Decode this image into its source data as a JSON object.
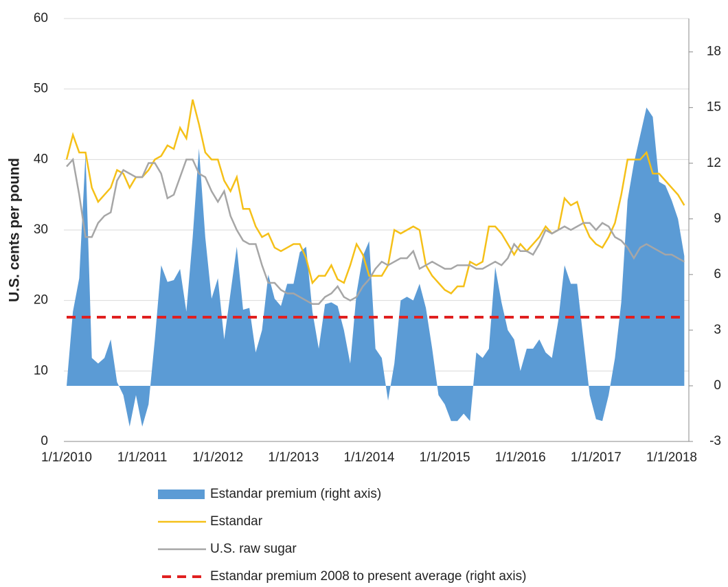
{
  "chart_data": {
    "type": "combo",
    "ylabel": "U.S. cents per pound",
    "categories": [
      "1/1/2010",
      null,
      null,
      null,
      null,
      null,
      null,
      null,
      null,
      null,
      null,
      null,
      "1/1/2011",
      null,
      null,
      null,
      null,
      null,
      null,
      null,
      null,
      null,
      null,
      null,
      "1/1/2012",
      null,
      null,
      null,
      null,
      null,
      null,
      null,
      null,
      null,
      null,
      null,
      "1/1/2013",
      null,
      null,
      null,
      null,
      null,
      null,
      null,
      null,
      null,
      null,
      null,
      "1/1/2014",
      null,
      null,
      null,
      null,
      null,
      null,
      null,
      null,
      null,
      null,
      null,
      "1/1/2015",
      null,
      null,
      null,
      null,
      null,
      null,
      null,
      null,
      null,
      null,
      null,
      "1/1/2016",
      null,
      null,
      null,
      null,
      null,
      null,
      null,
      null,
      null,
      null,
      null,
      "1/1/2017",
      null,
      null,
      null,
      null,
      null,
      null,
      null,
      null,
      null,
      null,
      null,
      "1/1/2018",
      null,
      null
    ],
    "ylim": [
      0,
      60
    ],
    "yticks": [
      0,
      10,
      20,
      30,
      40,
      50,
      60
    ],
    "y2lim": [
      -3,
      19.8
    ],
    "y2ticks": [
      -3,
      0,
      3,
      6,
      9,
      12,
      15,
      18
    ],
    "grid": true,
    "series": [
      {
        "name": "Estandar premium (right axis)",
        "type": "area",
        "axis": "y2",
        "color": "#5b9bd5",
        "values": [
          0,
          4,
          5.8,
          12.5,
          1.5,
          1.2,
          1.5,
          2.5,
          0.2,
          -0.5,
          -2.2,
          -0.5,
          -2.2,
          -1,
          2.5,
          6.5,
          5.6,
          5.7,
          6.3,
          4,
          8,
          12.8,
          8,
          4.7,
          5.8,
          2.5,
          5,
          7.5,
          4.1,
          4.2,
          1.8,
          3,
          6,
          4.7,
          4.3,
          5.5,
          5.5,
          7.2,
          7.5,
          4,
          2,
          4.4,
          4.5,
          4.3,
          3,
          1.2,
          5,
          7,
          7.8,
          2,
          1.5,
          -0.8,
          1.2,
          4.6,
          4.8,
          4.6,
          5.5,
          4.2,
          2,
          -0.5,
          -1,
          -1.9,
          -1.9,
          -1.5,
          -1.9,
          1.8,
          1.5,
          2,
          6.4,
          4.5,
          3,
          2.5,
          0.8,
          2,
          2,
          2.5,
          1.8,
          1.5,
          3.5,
          6.5,
          5.5,
          5.5,
          2.5,
          -0.5,
          -1.8,
          -1.9,
          -0.5,
          1.5,
          4.5,
          10,
          12,
          13.5,
          15,
          14.5,
          11,
          10.8,
          10,
          9,
          7
        ]
      },
      {
        "name": "Estandar",
        "type": "line",
        "color": "#f5c018",
        "values": [
          40,
          43.5,
          41,
          41,
          36,
          34,
          35,
          36,
          38.5,
          38,
          36,
          37.5,
          37.5,
          38.5,
          40,
          40.5,
          42,
          41.5,
          44.5,
          43,
          48.5,
          45,
          41,
          40,
          40,
          37,
          35.5,
          37.5,
          33,
          33,
          30.5,
          29,
          29.5,
          27.5,
          27,
          27.5,
          28,
          28,
          26,
          22.5,
          23.5,
          23.5,
          25,
          23,
          22.5,
          25,
          28,
          26.5,
          23.5,
          23.5,
          23.5,
          25,
          30,
          29.5,
          30,
          30.5,
          30,
          25,
          23.5,
          22.5,
          21.5,
          21,
          22,
          22,
          25.5,
          25,
          25.5,
          30.5,
          30.5,
          29.5,
          28,
          26.5,
          28,
          27,
          28,
          29,
          30.5,
          29.5,
          30,
          34.5,
          33.5,
          34,
          31,
          29,
          28,
          27.5,
          29,
          31,
          35,
          40,
          40,
          40,
          41,
          38,
          38,
          37,
          36,
          35,
          33.5
        ]
      },
      {
        "name": "U.S. raw sugar",
        "type": "line",
        "color": "#a6a6a6",
        "values": [
          39,
          40,
          35,
          29,
          29,
          31,
          32,
          32.5,
          37,
          38.5,
          38,
          37.5,
          37.5,
          39.5,
          39.5,
          38,
          34.5,
          35,
          37.5,
          40,
          40,
          38,
          37.5,
          35.5,
          34,
          35.5,
          32,
          30,
          28.5,
          28,
          28,
          25,
          22.5,
          22.5,
          21.5,
          21,
          21,
          20.5,
          20,
          19.5,
          19.5,
          20.5,
          21,
          22,
          20.5,
          20,
          20.5,
          22,
          23,
          24.5,
          25.5,
          25,
          25.5,
          26,
          26,
          27,
          24.5,
          25,
          25.5,
          25,
          24.5,
          24.5,
          25,
          25,
          25,
          24.5,
          24.5,
          25,
          25.5,
          25,
          26,
          28,
          27,
          27,
          26.5,
          28,
          30,
          29.5,
          30,
          30.5,
          30,
          30.5,
          31,
          31,
          30,
          31,
          30.5,
          29,
          28.5,
          27.5,
          26,
          27.5,
          28,
          27.5,
          27,
          26.5,
          26.5,
          26,
          25.5
        ]
      },
      {
        "name": "Estandar premium 2008 to present average (right axis)",
        "type": "hline",
        "axis": "y2",
        "color": "#e02020",
        "dashed": true,
        "value": 3.7
      }
    ]
  }
}
